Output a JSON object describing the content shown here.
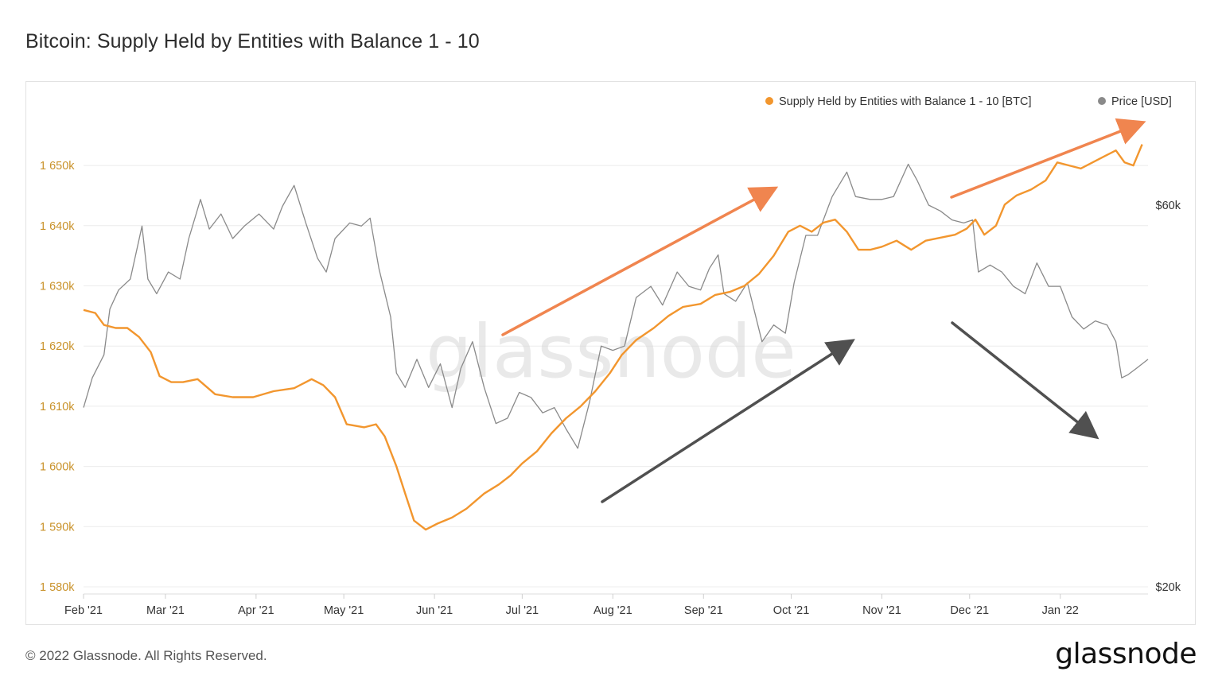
{
  "title": "Bitcoin: Supply Held by Entities with Balance 1 - 10",
  "footer": "© 2022 Glassnode. All Rights Reserved.",
  "brand": "glassnode",
  "watermark": "glassnode",
  "colors": {
    "supply": "#f2962e",
    "price": "#8a8a8a",
    "left_axis": "#c9922a",
    "arrow_orange": "#f0854f",
    "arrow_gray": "#505050",
    "grid": "#ececec"
  },
  "chart_data": {
    "type": "line",
    "title": "Bitcoin: Supply Held by Entities with Balance 1 - 10",
    "legend_position": "top-right",
    "grid": true,
    "x_tick_labels": [
      "Feb '21",
      "Mar '21",
      "Apr '21",
      "May '21",
      "Jun '21",
      "Jul '21",
      "Aug '21",
      "Sep '21",
      "Oct '21",
      "Nov '21",
      "Dec '21",
      "Jan '22"
    ],
    "x_tick_dates": [
      "2021-02-01",
      "2021-03-01",
      "2021-04-01",
      "2021-05-01",
      "2021-06-01",
      "2021-07-01",
      "2021-08-01",
      "2021-09-01",
      "2021-10-01",
      "2021-11-01",
      "2021-12-01",
      "2022-01-01"
    ],
    "x_range": [
      "2021-02-01",
      "2022-01-31"
    ],
    "y_left": {
      "range": [
        1580000,
        1660000
      ],
      "ticks": [
        1580000,
        1590000,
        1600000,
        1610000,
        1620000,
        1630000,
        1640000,
        1650000
      ],
      "tick_labels": [
        "1 580k",
        "1 590k",
        "1 600k",
        "1 610k",
        "1 620k",
        "1 630k",
        "1 640k",
        "1 650k"
      ]
    },
    "y_right": {
      "scale": "log",
      "range": [
        20000,
        80000
      ],
      "ticks": [
        20000,
        60000
      ],
      "tick_labels": [
        "$20k",
        "$60k"
      ]
    },
    "series": [
      {
        "name": "Supply Held by Entities with Balance 1 - 10 [BTC]",
        "axis": "left",
        "points": [
          [
            "2021-02-01",
            1626000
          ],
          [
            "2021-02-05",
            1625500
          ],
          [
            "2021-02-08",
            1623500
          ],
          [
            "2021-02-12",
            1623000
          ],
          [
            "2021-02-16",
            1623000
          ],
          [
            "2021-02-20",
            1621500
          ],
          [
            "2021-02-24",
            1619000
          ],
          [
            "2021-02-27",
            1615000
          ],
          [
            "2021-03-03",
            1614000
          ],
          [
            "2021-03-07",
            1614000
          ],
          [
            "2021-03-12",
            1614500
          ],
          [
            "2021-03-18",
            1612000
          ],
          [
            "2021-03-24",
            1611500
          ],
          [
            "2021-03-31",
            1611500
          ],
          [
            "2021-04-07",
            1612500
          ],
          [
            "2021-04-14",
            1613000
          ],
          [
            "2021-04-20",
            1614500
          ],
          [
            "2021-04-24",
            1613500
          ],
          [
            "2021-04-28",
            1611500
          ],
          [
            "2021-05-02",
            1607000
          ],
          [
            "2021-05-08",
            1606500
          ],
          [
            "2021-05-12",
            1607000
          ],
          [
            "2021-05-15",
            1605000
          ],
          [
            "2021-05-19",
            1600000
          ],
          [
            "2021-05-22",
            1595500
          ],
          [
            "2021-05-25",
            1591000
          ],
          [
            "2021-05-29",
            1589500
          ],
          [
            "2021-06-02",
            1590500
          ],
          [
            "2021-06-07",
            1591500
          ],
          [
            "2021-06-12",
            1593000
          ],
          [
            "2021-06-18",
            1595500
          ],
          [
            "2021-06-23",
            1597000
          ],
          [
            "2021-06-27",
            1598500
          ],
          [
            "2021-07-01",
            1600500
          ],
          [
            "2021-07-06",
            1602500
          ],
          [
            "2021-07-11",
            1605500
          ],
          [
            "2021-07-16",
            1608000
          ],
          [
            "2021-07-21",
            1610000
          ],
          [
            "2021-07-26",
            1612500
          ],
          [
            "2021-07-31",
            1615500
          ],
          [
            "2021-08-04",
            1618500
          ],
          [
            "2021-08-09",
            1621000
          ],
          [
            "2021-08-15",
            1623000
          ],
          [
            "2021-08-20",
            1625000
          ],
          [
            "2021-08-25",
            1626500
          ],
          [
            "2021-08-31",
            1627000
          ],
          [
            "2021-09-05",
            1628500
          ],
          [
            "2021-09-10",
            1629000
          ],
          [
            "2021-09-15",
            1630000
          ],
          [
            "2021-09-20",
            1632000
          ],
          [
            "2021-09-25",
            1635000
          ],
          [
            "2021-09-30",
            1639000
          ],
          [
            "2021-10-04",
            1640000
          ],
          [
            "2021-10-08",
            1639000
          ],
          [
            "2021-10-12",
            1640500
          ],
          [
            "2021-10-16",
            1641000
          ],
          [
            "2021-10-20",
            1639000
          ],
          [
            "2021-10-24",
            1636000
          ],
          [
            "2021-10-28",
            1636000
          ],
          [
            "2021-11-01",
            1636500
          ],
          [
            "2021-11-06",
            1637500
          ],
          [
            "2021-11-11",
            1636000
          ],
          [
            "2021-11-16",
            1637500
          ],
          [
            "2021-11-21",
            1638000
          ],
          [
            "2021-11-26",
            1638500
          ],
          [
            "2021-11-30",
            1639500
          ],
          [
            "2021-12-03",
            1641000
          ],
          [
            "2021-12-06",
            1638500
          ],
          [
            "2021-12-10",
            1640000
          ],
          [
            "2021-12-13",
            1643500
          ],
          [
            "2021-12-17",
            1645000
          ],
          [
            "2021-12-22",
            1646000
          ],
          [
            "2021-12-27",
            1647500
          ],
          [
            "2021-12-31",
            1650500
          ],
          [
            "2022-01-04",
            1650000
          ],
          [
            "2022-01-08",
            1649500
          ],
          [
            "2022-01-12",
            1650500
          ],
          [
            "2022-01-16",
            1651500
          ],
          [
            "2022-01-20",
            1652500
          ],
          [
            "2022-01-23",
            1650500
          ],
          [
            "2022-01-26",
            1650000
          ],
          [
            "2022-01-29",
            1653500
          ]
        ]
      },
      {
        "name": "Price [USD]",
        "axis": "right",
        "points": [
          [
            "2021-02-01",
            33500
          ],
          [
            "2021-02-04",
            36500
          ],
          [
            "2021-02-08",
            39000
          ],
          [
            "2021-02-10",
            44500
          ],
          [
            "2021-02-13",
            47000
          ],
          [
            "2021-02-17",
            48500
          ],
          [
            "2021-02-21",
            56500
          ],
          [
            "2021-02-23",
            48500
          ],
          [
            "2021-02-26",
            46500
          ],
          [
            "2021-03-02",
            49500
          ],
          [
            "2021-03-06",
            48500
          ],
          [
            "2021-03-09",
            54500
          ],
          [
            "2021-03-13",
            61000
          ],
          [
            "2021-03-16",
            56000
          ],
          [
            "2021-03-20",
            58500
          ],
          [
            "2021-03-24",
            54500
          ],
          [
            "2021-03-28",
            56500
          ],
          [
            "2021-04-02",
            58500
          ],
          [
            "2021-04-07",
            56000
          ],
          [
            "2021-04-10",
            59800
          ],
          [
            "2021-04-14",
            63500
          ],
          [
            "2021-04-18",
            57000
          ],
          [
            "2021-04-22",
            51500
          ],
          [
            "2021-04-25",
            49500
          ],
          [
            "2021-04-28",
            54500
          ],
          [
            "2021-05-03",
            57000
          ],
          [
            "2021-05-07",
            56500
          ],
          [
            "2021-05-10",
            57800
          ],
          [
            "2021-05-13",
            50000
          ],
          [
            "2021-05-17",
            43500
          ],
          [
            "2021-05-19",
            37000
          ],
          [
            "2021-05-22",
            35500
          ],
          [
            "2021-05-26",
            38500
          ],
          [
            "2021-05-30",
            35500
          ],
          [
            "2021-06-03",
            38000
          ],
          [
            "2021-06-07",
            33500
          ],
          [
            "2021-06-10",
            37500
          ],
          [
            "2021-06-14",
            40500
          ],
          [
            "2021-06-18",
            35500
          ],
          [
            "2021-06-22",
            32000
          ],
          [
            "2021-06-26",
            32500
          ],
          [
            "2021-06-30",
            35000
          ],
          [
            "2021-07-04",
            34500
          ],
          [
            "2021-07-08",
            33000
          ],
          [
            "2021-07-12",
            33500
          ],
          [
            "2021-07-16",
            31500
          ],
          [
            "2021-07-20",
            29800
          ],
          [
            "2021-07-24",
            34000
          ],
          [
            "2021-07-28",
            40000
          ],
          [
            "2021-08-01",
            39500
          ],
          [
            "2021-08-05",
            40000
          ],
          [
            "2021-08-09",
            46000
          ],
          [
            "2021-08-14",
            47500
          ],
          [
            "2021-08-18",
            45000
          ],
          [
            "2021-08-23",
            49500
          ],
          [
            "2021-08-27",
            47500
          ],
          [
            "2021-08-31",
            47000
          ],
          [
            "2021-09-03",
            50000
          ],
          [
            "2021-09-06",
            52000
          ],
          [
            "2021-09-08",
            46500
          ],
          [
            "2021-09-12",
            45500
          ],
          [
            "2021-09-16",
            48000
          ],
          [
            "2021-09-21",
            40500
          ],
          [
            "2021-09-25",
            42500
          ],
          [
            "2021-09-29",
            41500
          ],
          [
            "2021-10-02",
            48000
          ],
          [
            "2021-10-06",
            55000
          ],
          [
            "2021-10-10",
            55000
          ],
          [
            "2021-10-15",
            61500
          ],
          [
            "2021-10-20",
            66000
          ],
          [
            "2021-10-23",
            61500
          ],
          [
            "2021-10-28",
            61000
          ],
          [
            "2021-11-01",
            61000
          ],
          [
            "2021-11-05",
            61500
          ],
          [
            "2021-11-10",
            67500
          ],
          [
            "2021-11-13",
            64500
          ],
          [
            "2021-11-17",
            60000
          ],
          [
            "2021-11-21",
            59000
          ],
          [
            "2021-11-25",
            57500
          ],
          [
            "2021-11-29",
            57000
          ],
          [
            "2021-12-02",
            57500
          ],
          [
            "2021-12-04",
            49500
          ],
          [
            "2021-12-08",
            50500
          ],
          [
            "2021-12-12",
            49500
          ],
          [
            "2021-12-16",
            47500
          ],
          [
            "2021-12-20",
            46500
          ],
          [
            "2021-12-24",
            50800
          ],
          [
            "2021-12-28",
            47500
          ],
          [
            "2022-01-01",
            47500
          ],
          [
            "2022-01-05",
            43500
          ],
          [
            "2022-01-09",
            42000
          ],
          [
            "2022-01-13",
            43000
          ],
          [
            "2022-01-17",
            42500
          ],
          [
            "2022-01-20",
            40500
          ],
          [
            "2022-01-22",
            36500
          ],
          [
            "2022-01-24",
            36800
          ],
          [
            "2022-01-27",
            37500
          ],
          [
            "2022-01-31",
            38500
          ]
        ]
      }
    ],
    "annotations": [
      {
        "type": "arrow",
        "color": "orange",
        "target": "supply uptrend Jul–Sep '21"
      },
      {
        "type": "arrow",
        "color": "orange",
        "target": "supply uptrend Dec '21–Jan '22"
      },
      {
        "type": "arrow",
        "color": "gray",
        "target": "price uptrend Aug–Oct '21"
      },
      {
        "type": "arrow",
        "color": "gray",
        "target": "price downtrend Dec '21–Jan '22"
      }
    ]
  }
}
